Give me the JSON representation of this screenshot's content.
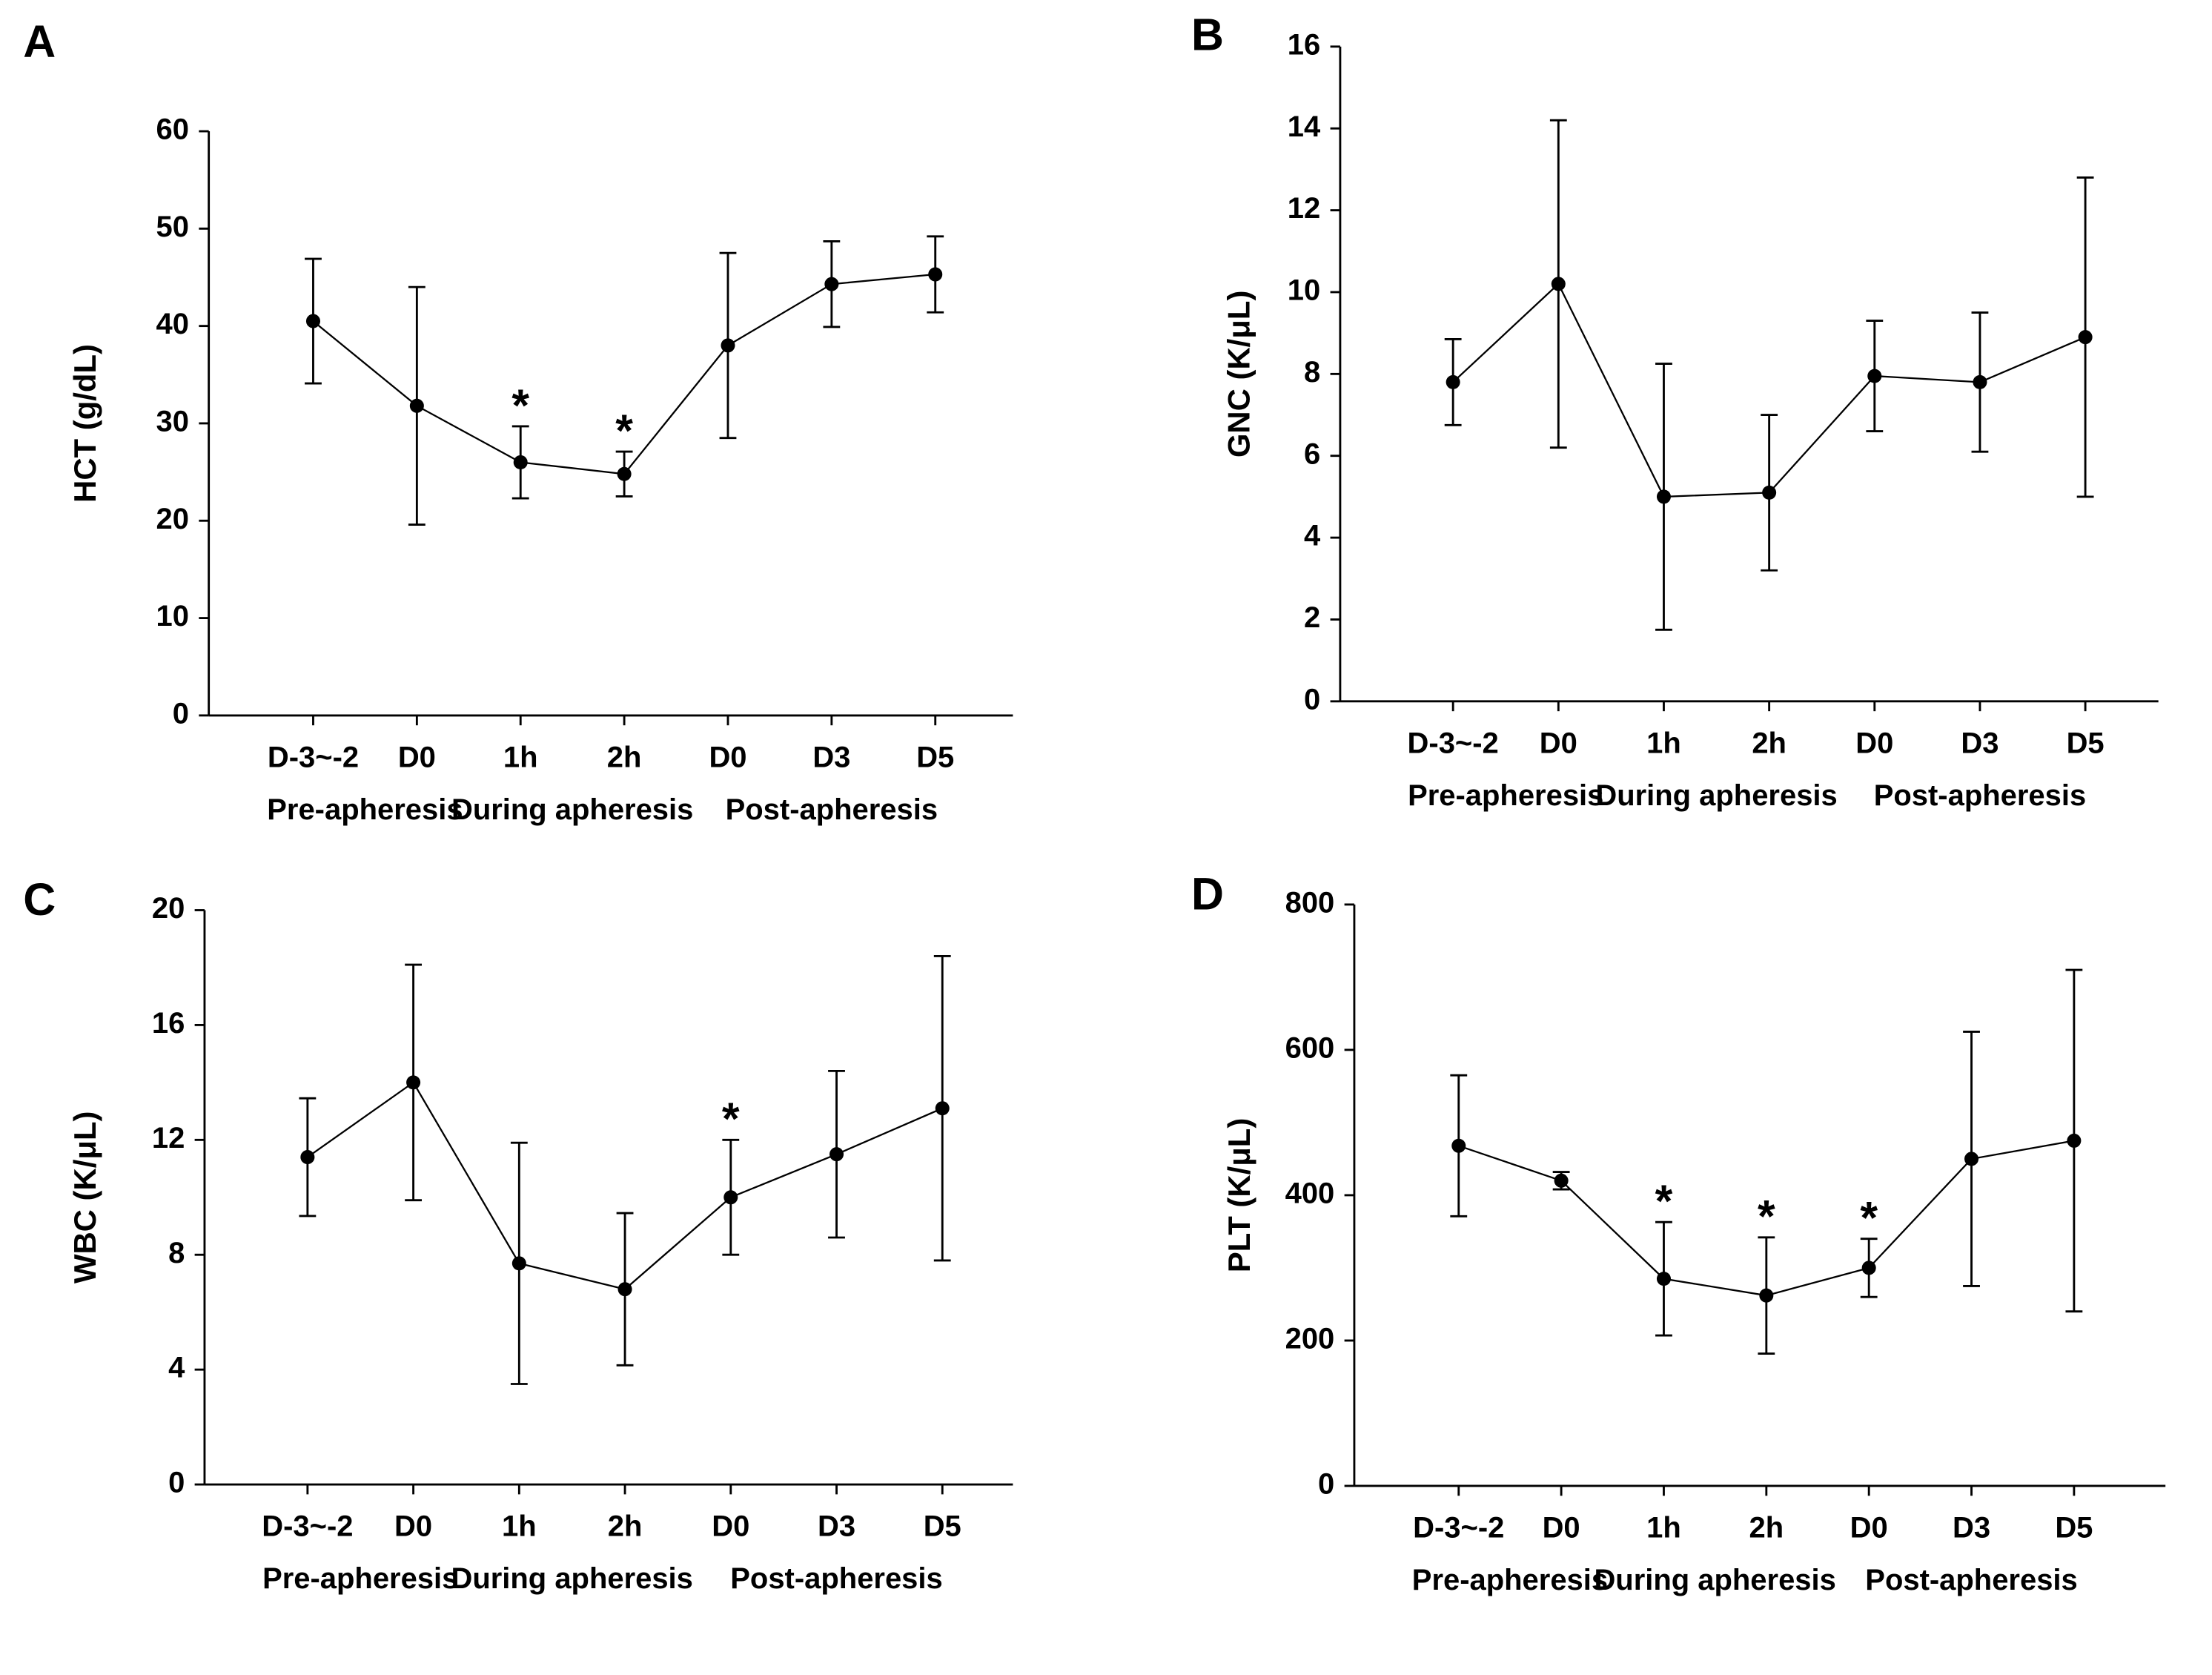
{
  "chart_data": [
    {
      "type": "line",
      "panel": "A",
      "y_label": "HCT (g/dL)",
      "categories": [
        "D-3~-2",
        "D0",
        "1h",
        "2h",
        "D0",
        "D3",
        "D5"
      ],
      "groups": [
        "Pre-apheresis",
        "During apheresis",
        "Post-apheresis"
      ],
      "values": [
        40.5,
        31.8,
        26,
        24.8,
        38,
        44.3,
        45.3
      ],
      "errors": [
        6.4,
        12.2,
        3.7,
        2.3,
        9.5,
        4.4,
        3.9
      ],
      "significance": [
        null,
        null,
        "*",
        "*",
        null,
        null,
        null
      ],
      "color": "#000000",
      "ylim": [
        0,
        60
      ],
      "yticks": [
        0,
        10,
        20,
        30,
        40,
        50,
        60
      ]
    },
    {
      "type": "line",
      "panel": "B",
      "y_label": "GNC (K/μL)",
      "categories": [
        "D-3~-2",
        "D0",
        "1h",
        "2h",
        "D0",
        "D3",
        "D5"
      ],
      "groups": [
        "Pre-apheresis",
        "During apheresis",
        "Post-apheresis"
      ],
      "values": [
        7.8,
        10.2,
        5.0,
        5.1,
        7.95,
        7.8,
        8.9
      ],
      "errors": [
        1.05,
        4.0,
        3.25,
        1.9,
        1.35,
        1.7,
        3.9
      ],
      "significance": [
        null,
        null,
        null,
        null,
        null,
        null,
        null
      ],
      "color": "#000000",
      "ylim": [
        0,
        16
      ],
      "yticks": [
        0,
        2,
        4,
        6,
        8,
        10,
        12,
        14,
        16
      ]
    },
    {
      "type": "line",
      "panel": "C",
      "y_label": "WBC (K/μL)",
      "categories": [
        "D-3~-2",
        "D0",
        "1h",
        "2h",
        "D0",
        "D3",
        "D5"
      ],
      "groups": [
        "Pre-apheresis",
        "During apheresis",
        "Post-apheresis"
      ],
      "values": [
        11.4,
        14,
        7.7,
        6.8,
        10,
        11.5,
        13.1
      ],
      "errors": [
        2.05,
        4.1,
        4.2,
        2.65,
        2.0,
        2.9,
        5.3
      ],
      "significance": [
        null,
        null,
        null,
        null,
        "*",
        null,
        null
      ],
      "color": "#000000",
      "ylim": [
        0,
        20
      ],
      "yticks": [
        0,
        4,
        8,
        12,
        16,
        20
      ]
    },
    {
      "type": "line",
      "panel": "D",
      "y_label": "PLT (K/μL)",
      "categories": [
        "D-3~-2",
        "D0",
        "1h",
        "2h",
        "D0",
        "D3",
        "D5"
      ],
      "groups": [
        "Pre-apheresis",
        "During apheresis",
        "Post-apheresis"
      ],
      "values": [
        468,
        420,
        285,
        262,
        300,
        450,
        475
      ],
      "errors": [
        97,
        12,
        78,
        80,
        40,
        175,
        235
      ],
      "significance": [
        null,
        null,
        "*",
        "*",
        "*",
        null,
        null
      ],
      "color": "#000000",
      "ylim": [
        0,
        800
      ],
      "yticks": [
        0,
        200,
        400,
        600,
        800
      ]
    }
  ]
}
